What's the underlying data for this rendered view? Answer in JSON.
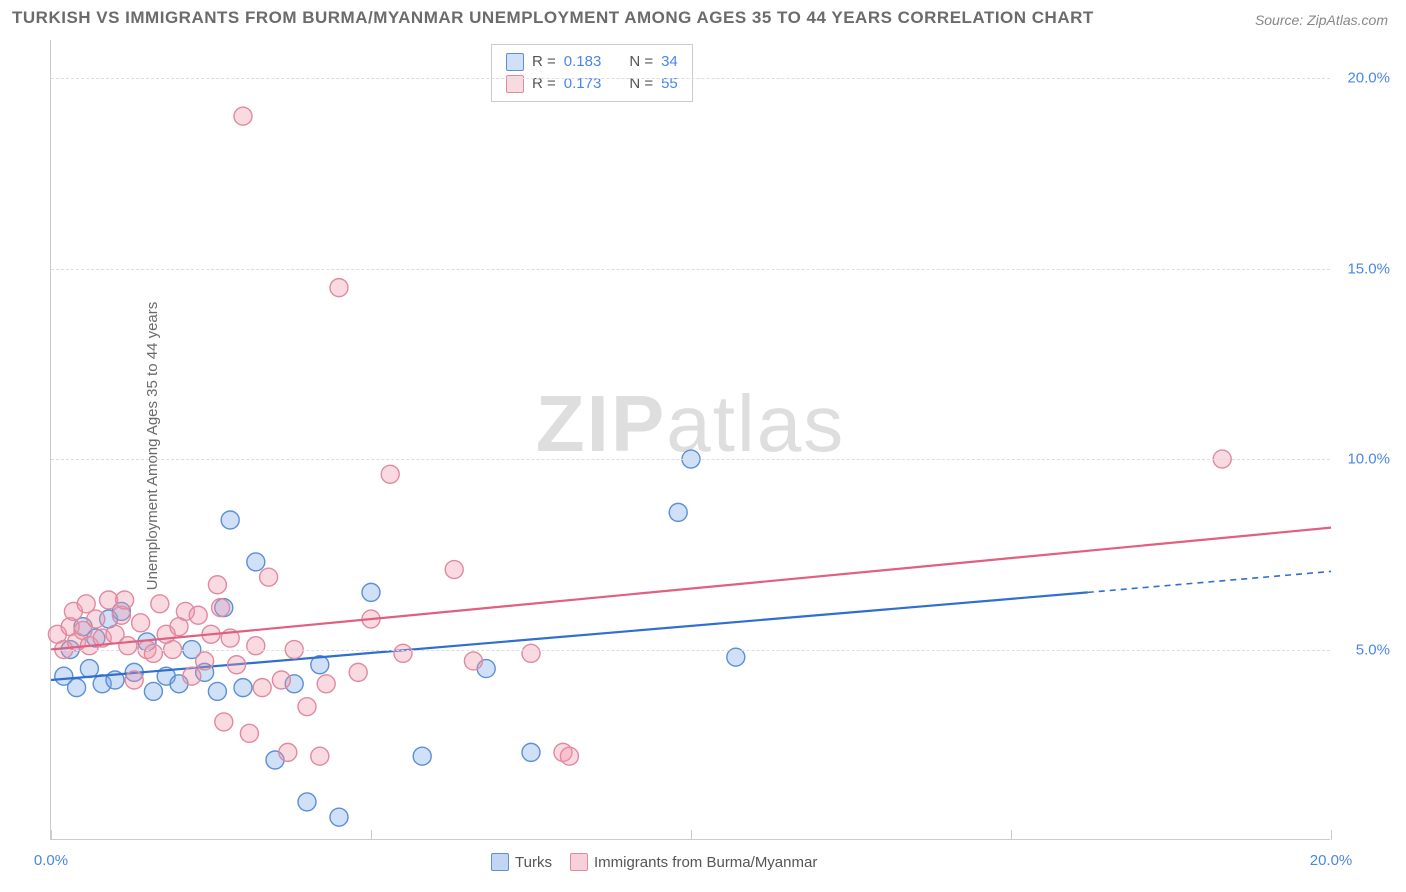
{
  "title": "TURKISH VS IMMIGRANTS FROM BURMA/MYANMAR UNEMPLOYMENT AMONG AGES 35 TO 44 YEARS CORRELATION CHART",
  "source": "Source: ZipAtlas.com",
  "ylabel": "Unemployment Among Ages 35 to 44 years",
  "watermark_a": "ZIP",
  "watermark_b": "atlas",
  "chart": {
    "type": "scatter",
    "xlim": [
      0,
      20
    ],
    "ylim": [
      0,
      21
    ],
    "ytick_values": [
      5,
      10,
      15,
      20
    ],
    "ytick_labels": [
      "5.0%",
      "10.0%",
      "15.0%",
      "20.0%"
    ],
    "xtick_values": [
      0,
      5,
      10,
      15,
      20
    ],
    "xtick_labels": [
      "0.0%",
      "",
      "",
      "",
      "20.0%"
    ],
    "grid_color": "#dddddd",
    "background": "#ffffff",
    "marker_radius": 9,
    "marker_stroke_width": 1.4,
    "series": [
      {
        "name": "Turks",
        "fill": "rgba(120,165,230,0.35)",
        "stroke": "#5b8fd6",
        "line_color": "#2f6fd0",
        "r_label": "R = ",
        "r_value": "0.183",
        "n_label": "N = ",
        "n_value": "34",
        "trend": {
          "x1": 0,
          "y1": 4.2,
          "x2": 16.2,
          "y2": 6.5,
          "x3": 20,
          "y3": 7.05
        },
        "points": [
          [
            0.2,
            4.3
          ],
          [
            0.3,
            5.0
          ],
          [
            0.4,
            4.0
          ],
          [
            0.5,
            5.6
          ],
          [
            0.6,
            4.5
          ],
          [
            0.7,
            5.3
          ],
          [
            0.8,
            4.1
          ],
          [
            0.9,
            5.8
          ],
          [
            1.0,
            4.2
          ],
          [
            1.1,
            6.0
          ],
          [
            1.3,
            4.4
          ],
          [
            1.5,
            5.2
          ],
          [
            1.6,
            3.9
          ],
          [
            1.8,
            4.3
          ],
          [
            2.0,
            4.1
          ],
          [
            2.2,
            5.0
          ],
          [
            2.4,
            4.4
          ],
          [
            2.6,
            3.9
          ],
          [
            2.7,
            6.1
          ],
          [
            2.8,
            8.4
          ],
          [
            3.0,
            4.0
          ],
          [
            3.2,
            7.3
          ],
          [
            3.5,
            2.1
          ],
          [
            3.8,
            4.1
          ],
          [
            4.0,
            1.0
          ],
          [
            4.2,
            4.6
          ],
          [
            4.5,
            0.6
          ],
          [
            5.0,
            6.5
          ],
          [
            5.8,
            2.2
          ],
          [
            6.8,
            4.5
          ],
          [
            7.5,
            2.3
          ],
          [
            9.8,
            8.6
          ],
          [
            10.0,
            10.0
          ],
          [
            10.7,
            4.8
          ]
        ]
      },
      {
        "name": "Immigrants from Burma/Myanmar",
        "fill": "rgba(240,150,170,0.35)",
        "stroke": "#e08aa0",
        "line_color": "#e06080",
        "r_label": "R = ",
        "r_value": "0.173",
        "n_label": "N = ",
        "n_value": "55",
        "trend": {
          "x1": 0,
          "y1": 5.0,
          "x2": 20,
          "y2": 8.2,
          "x3": 20,
          "y3": 8.2
        },
        "points": [
          [
            0.1,
            5.4
          ],
          [
            0.2,
            5.0
          ],
          [
            0.3,
            5.6
          ],
          [
            0.35,
            6.0
          ],
          [
            0.4,
            5.2
          ],
          [
            0.5,
            5.5
          ],
          [
            0.55,
            6.2
          ],
          [
            0.6,
            5.1
          ],
          [
            0.7,
            5.8
          ],
          [
            0.8,
            5.3
          ],
          [
            0.9,
            6.3
          ],
          [
            1.0,
            5.4
          ],
          [
            1.1,
            5.9
          ],
          [
            1.15,
            6.3
          ],
          [
            1.2,
            5.1
          ],
          [
            1.3,
            4.2
          ],
          [
            1.4,
            5.7
          ],
          [
            1.5,
            5.0
          ],
          [
            1.6,
            4.9
          ],
          [
            1.7,
            6.2
          ],
          [
            1.8,
            5.4
          ],
          [
            1.9,
            5.0
          ],
          [
            2.0,
            5.6
          ],
          [
            2.1,
            6.0
          ],
          [
            2.2,
            4.3
          ],
          [
            2.3,
            5.9
          ],
          [
            2.4,
            4.7
          ],
          [
            2.5,
            5.4
          ],
          [
            2.6,
            6.7
          ],
          [
            2.65,
            6.1
          ],
          [
            2.7,
            3.1
          ],
          [
            2.8,
            5.3
          ],
          [
            2.9,
            4.6
          ],
          [
            3.0,
            19.0
          ],
          [
            3.1,
            2.8
          ],
          [
            3.2,
            5.1
          ],
          [
            3.4,
            6.9
          ],
          [
            3.6,
            4.2
          ],
          [
            3.7,
            2.3
          ],
          [
            3.8,
            5.0
          ],
          [
            4.0,
            3.5
          ],
          [
            4.2,
            2.2
          ],
          [
            4.3,
            4.1
          ],
          [
            4.5,
            14.5
          ],
          [
            4.8,
            4.4
          ],
          [
            5.0,
            5.8
          ],
          [
            5.3,
            9.6
          ],
          [
            5.5,
            4.9
          ],
          [
            6.3,
            7.1
          ],
          [
            6.6,
            4.7
          ],
          [
            7.5,
            4.9
          ],
          [
            8.0,
            2.3
          ],
          [
            8.1,
            2.2
          ],
          [
            18.3,
            10.0
          ],
          [
            3.3,
            4.0
          ]
        ]
      }
    ],
    "legend_bottom": [
      {
        "label": "Turks",
        "fill": "rgba(120,165,230,0.45)",
        "stroke": "#5b8fd6"
      },
      {
        "label": "Immigrants from Burma/Myanmar",
        "fill": "rgba(240,150,170,0.45)",
        "stroke": "#e08aa0"
      }
    ]
  }
}
